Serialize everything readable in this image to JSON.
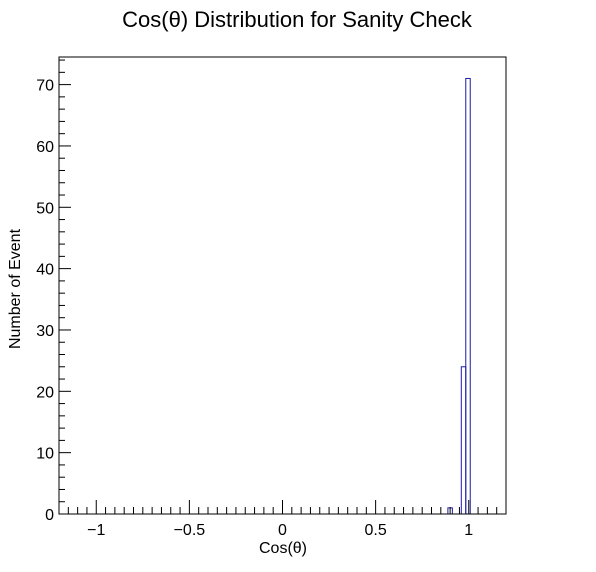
{
  "chart_data": {
    "type": "bar",
    "title": "Cos(θ) Distribution for Sanity Check",
    "xlabel": "Cos(θ)",
    "ylabel": "Number of Event",
    "xlim": [
      -1.2,
      1.2
    ],
    "ylim": [
      0,
      74.5
    ],
    "grid": false,
    "legend": "none",
    "x_ticks": [
      -1,
      -0.5,
      0,
      0.5,
      1
    ],
    "x_tick_labels": [
      "−1",
      "−0.5",
      "0",
      "0.5",
      "1"
    ],
    "y_ticks": [
      0,
      10,
      20,
      30,
      40,
      50,
      60,
      70
    ],
    "y_tick_labels": [
      "0",
      "10",
      "20",
      "30",
      "40",
      "50",
      "60",
      "70"
    ],
    "bin_width": 0.024,
    "bins": [
      {
        "x_low": 0.888,
        "x_high": 0.912,
        "count": 1
      },
      {
        "x_low": 0.96,
        "x_high": 0.984,
        "count": 24
      },
      {
        "x_low": 0.984,
        "x_high": 1.008,
        "count": 71
      }
    ],
    "colors": {
      "histogram_line": "#1a1aa6",
      "axis": "#000000",
      "background": "#ffffff"
    }
  }
}
